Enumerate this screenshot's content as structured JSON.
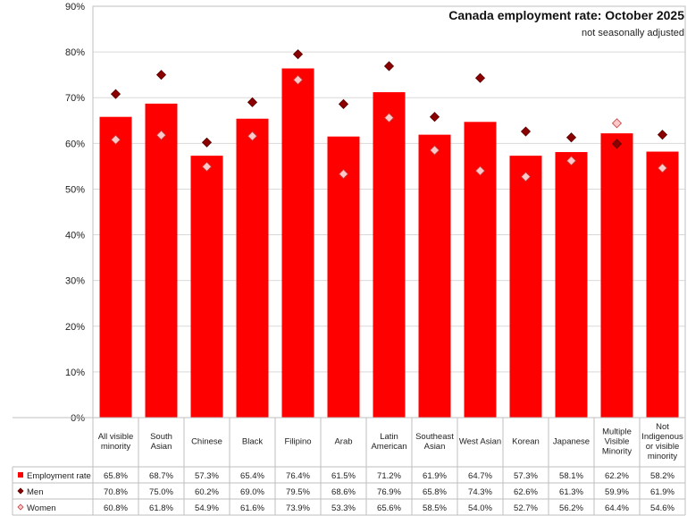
{
  "chart_data": {
    "type": "bar",
    "title": "Canada employment rate: October 2025",
    "subtitle": "not seasonally adjusted",
    "xlabel": "",
    "ylabel": "",
    "ylim": [
      0,
      90
    ],
    "yticks": [
      "0%",
      "10%",
      "20%",
      "30%",
      "40%",
      "50%",
      "60%",
      "70%",
      "80%",
      "90%"
    ],
    "grid": true,
    "legend": "data-table-left",
    "categories": [
      [
        "All visible",
        "minority"
      ],
      [
        "South",
        "Asian"
      ],
      [
        "Chinese"
      ],
      [
        "Black"
      ],
      [
        "Filipino"
      ],
      [
        "Arab"
      ],
      [
        "Latin",
        "American"
      ],
      [
        "Southeast",
        "Asian"
      ],
      [
        "West Asian"
      ],
      [
        "Korean"
      ],
      [
        "Japanese"
      ],
      [
        "Multiple",
        "Visible",
        "Minority"
      ],
      [
        "Not",
        "Indigenous",
        "or visible",
        "minority"
      ]
    ],
    "series": [
      {
        "name": "Employment rate",
        "style": "bar",
        "color": "#ff0000",
        "values": [
          65.8,
          68.7,
          57.3,
          65.4,
          76.4,
          61.5,
          71.2,
          61.9,
          64.7,
          57.3,
          58.1,
          62.2,
          58.2
        ],
        "labels": [
          "65.8%",
          "68.7%",
          "57.3%",
          "65.4%",
          "76.4%",
          "61.5%",
          "71.2%",
          "61.9%",
          "64.7%",
          "57.3%",
          "58.1%",
          "62.2%",
          "58.2%"
        ]
      },
      {
        "name": "Men",
        "style": "diamond",
        "color": "#8b0000",
        "values": [
          70.8,
          75.0,
          60.2,
          69.0,
          79.5,
          68.6,
          76.9,
          65.8,
          74.3,
          62.6,
          61.3,
          59.9,
          61.9
        ],
        "labels": [
          "70.8%",
          "75.0%",
          "60.2%",
          "69.0%",
          "79.5%",
          "68.6%",
          "76.9%",
          "65.8%",
          "74.3%",
          "62.6%",
          "61.3%",
          "59.9%",
          "61.9%"
        ]
      },
      {
        "name": "Women",
        "style": "diamond",
        "color": "#ffc8c8",
        "values": [
          60.8,
          61.8,
          54.9,
          61.6,
          73.9,
          53.3,
          65.6,
          58.5,
          54.0,
          52.7,
          56.2,
          64.4,
          54.6
        ],
        "labels": [
          "60.8%",
          "61.8%",
          "54.9%",
          "61.6%",
          "73.9%",
          "53.3%",
          "65.6%",
          "58.5%",
          "54.0%",
          "52.7%",
          "56.2%",
          "64.4%",
          "54.6%"
        ]
      }
    ]
  }
}
